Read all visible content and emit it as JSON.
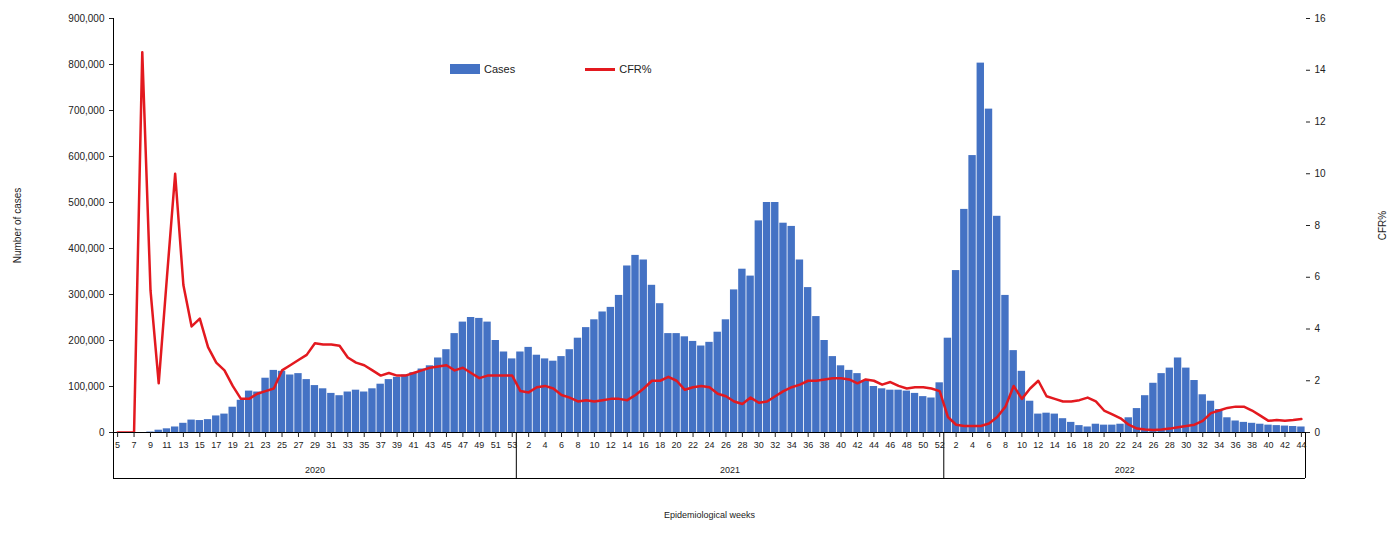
{
  "chart_data": {
    "type": "bar",
    "x_label": "Epidemiological weeks",
    "y_label": "Number of cases",
    "y2_label": "CFR%",
    "categories": [
      "5",
      null,
      "7",
      null,
      "9",
      null,
      "11",
      null,
      "13",
      null,
      "15",
      null,
      "17",
      null,
      "19",
      null,
      "21",
      null,
      "23",
      null,
      "25",
      null,
      "27",
      null,
      "29",
      null,
      "31",
      null,
      "33",
      null,
      "35",
      null,
      "37",
      null,
      "39",
      null,
      "41",
      null,
      "43",
      null,
      "45",
      null,
      "47",
      null,
      "49",
      null,
      "51",
      null,
      "53",
      null,
      "2",
      null,
      "4",
      null,
      "6",
      null,
      "8",
      null,
      "10",
      null,
      "12",
      null,
      "14",
      null,
      "16",
      null,
      "18",
      null,
      "20",
      null,
      "22",
      null,
      "24",
      null,
      "26",
      null,
      "28",
      null,
      "30",
      null,
      "32",
      null,
      "34",
      null,
      "36",
      null,
      "38",
      null,
      "40",
      null,
      "42",
      null,
      "44",
      null,
      "46",
      null,
      "48",
      null,
      "50",
      null,
      "52",
      null,
      "2",
      null,
      "4",
      null,
      "6",
      null,
      "8",
      null,
      "10",
      null,
      "12",
      null,
      "14",
      null,
      "16",
      null,
      "18",
      null,
      "20",
      null,
      "22",
      null,
      "24",
      null,
      "26",
      null,
      "28",
      null,
      "30",
      null,
      "32",
      null,
      "34",
      null,
      "36",
      null,
      "38",
      null,
      "40",
      null,
      "42",
      null,
      "44"
    ],
    "groups": [
      {
        "label": "2020",
        "count": 49
      },
      {
        "label": "2021",
        "count": 52
      },
      {
        "label": "2022",
        "count": 44
      }
    ],
    "series": [
      {
        "name": "Cases",
        "type": "bar",
        "color": "#4472c4",
        "values": [
          0,
          0,
          0,
          0,
          1000,
          5000,
          8000,
          12000,
          20000,
          27000,
          26000,
          28000,
          36000,
          40000,
          55000,
          70000,
          90000,
          88000,
          118000,
          135000,
          133000,
          125000,
          128000,
          115000,
          102000,
          95000,
          85000,
          80000,
          88000,
          92000,
          88000,
          95000,
          105000,
          115000,
          120000,
          125000,
          130000,
          138000,
          145000,
          162000,
          180000,
          215000,
          240000,
          250000,
          248000,
          240000,
          200000,
          175000,
          160000,
          175000,
          185000,
          168000,
          160000,
          155000,
          165000,
          180000,
          205000,
          228000,
          245000,
          262000,
          272000,
          298000,
          362000,
          385000,
          375000,
          320000,
          280000,
          215000,
          215000,
          208000,
          198000,
          188000,
          196000,
          218000,
          245000,
          310000,
          355000,
          340000,
          460000,
          500000,
          500000,
          455000,
          448000,
          375000,
          315000,
          252000,
          200000,
          165000,
          145000,
          135000,
          128000,
          112000,
          100000,
          95000,
          92000,
          92000,
          90000,
          85000,
          78000,
          75000,
          108000,
          205000,
          352000,
          485000,
          602000,
          803000,
          703000,
          470000,
          298000,
          178000,
          133000,
          68000,
          40000,
          42000,
          40000,
          30000,
          22000,
          15000,
          12000,
          18000,
          16000,
          16000,
          18000,
          32000,
          52000,
          80000,
          107000,
          128000,
          140000,
          162000,
          140000,
          113000,
          82000,
          68000,
          50000,
          32000,
          25000,
          22000,
          20000,
          18000,
          16000,
          15000,
          14000,
          13000,
          12000
        ]
      },
      {
        "name": "CFR%",
        "type": "line",
        "axis": "y2",
        "color": "#e3191f",
        "values": [
          0,
          0,
          0,
          14.7,
          5.5,
          1.9,
          6,
          10,
          5.7,
          4.1,
          4.4,
          3.3,
          2.7,
          2.4,
          1.8,
          1.3,
          1.3,
          1.5,
          1.6,
          1.7,
          2.4,
          2.6,
          2.8,
          3,
          3.45,
          3.4,
          3.4,
          3.35,
          2.9,
          2.7,
          2.6,
          2.4,
          2.2,
          2.3,
          2.2,
          2.2,
          2.3,
          2.4,
          2.5,
          2.55,
          2.6,
          2.4,
          2.5,
          2.3,
          2.1,
          2.2,
          2.2,
          2.2,
          2.2,
          1.6,
          1.55,
          1.75,
          1.8,
          1.7,
          1.45,
          1.35,
          1.2,
          1.25,
          1.2,
          1.25,
          1.3,
          1.3,
          1.25,
          1.45,
          1.7,
          2.0,
          2.0,
          2.15,
          2.0,
          1.65,
          1.75,
          1.8,
          1.75,
          1.5,
          1.4,
          1.2,
          1.1,
          1.35,
          1.15,
          1.2,
          1.4,
          1.6,
          1.75,
          1.85,
          2.0,
          2.0,
          2.05,
          2.1,
          2.1,
          2.05,
          1.9,
          2.05,
          2.0,
          1.85,
          1.95,
          1.8,
          1.7,
          1.75,
          1.75,
          1.7,
          1.6,
          0.6,
          0.3,
          0.25,
          0.25,
          0.25,
          0.35,
          0.6,
          1.0,
          1.8,
          1.3,
          1.7,
          2.0,
          1.4,
          1.3,
          1.2,
          1.2,
          1.25,
          1.35,
          1.2,
          0.85,
          0.7,
          0.55,
          0.3,
          0.15,
          0.12,
          0.1,
          0.12,
          0.15,
          0.2,
          0.25,
          0.3,
          0.45,
          0.75,
          0.85,
          0.95,
          1.0,
          1.0,
          0.85,
          0.65,
          0.45,
          0.48,
          0.45,
          0.48,
          0.52
        ]
      }
    ],
    "ylim": [
      0,
      900000
    ],
    "yticks": [
      0,
      {
        "value": 100000,
        "label": "100,000"
      },
      {
        "value": 200000,
        "label": "200,000"
      },
      {
        "value": 300000,
        "label": "300,000"
      },
      {
        "value": 400000,
        "label": "400,000"
      },
      {
        "value": 500000,
        "label": "500,000"
      },
      {
        "value": 600000,
        "label": "600,000"
      },
      {
        "value": 700000,
        "label": "700,000"
      },
      {
        "value": 800000,
        "label": "800,000"
      },
      {
        "value": 900000,
        "label": "900,000"
      }
    ],
    "y2lim": [
      0,
      16
    ],
    "y2ticks": [
      0,
      2,
      4,
      6,
      8,
      10,
      12,
      14,
      16
    ],
    "legend": "top",
    "grid": false
  }
}
